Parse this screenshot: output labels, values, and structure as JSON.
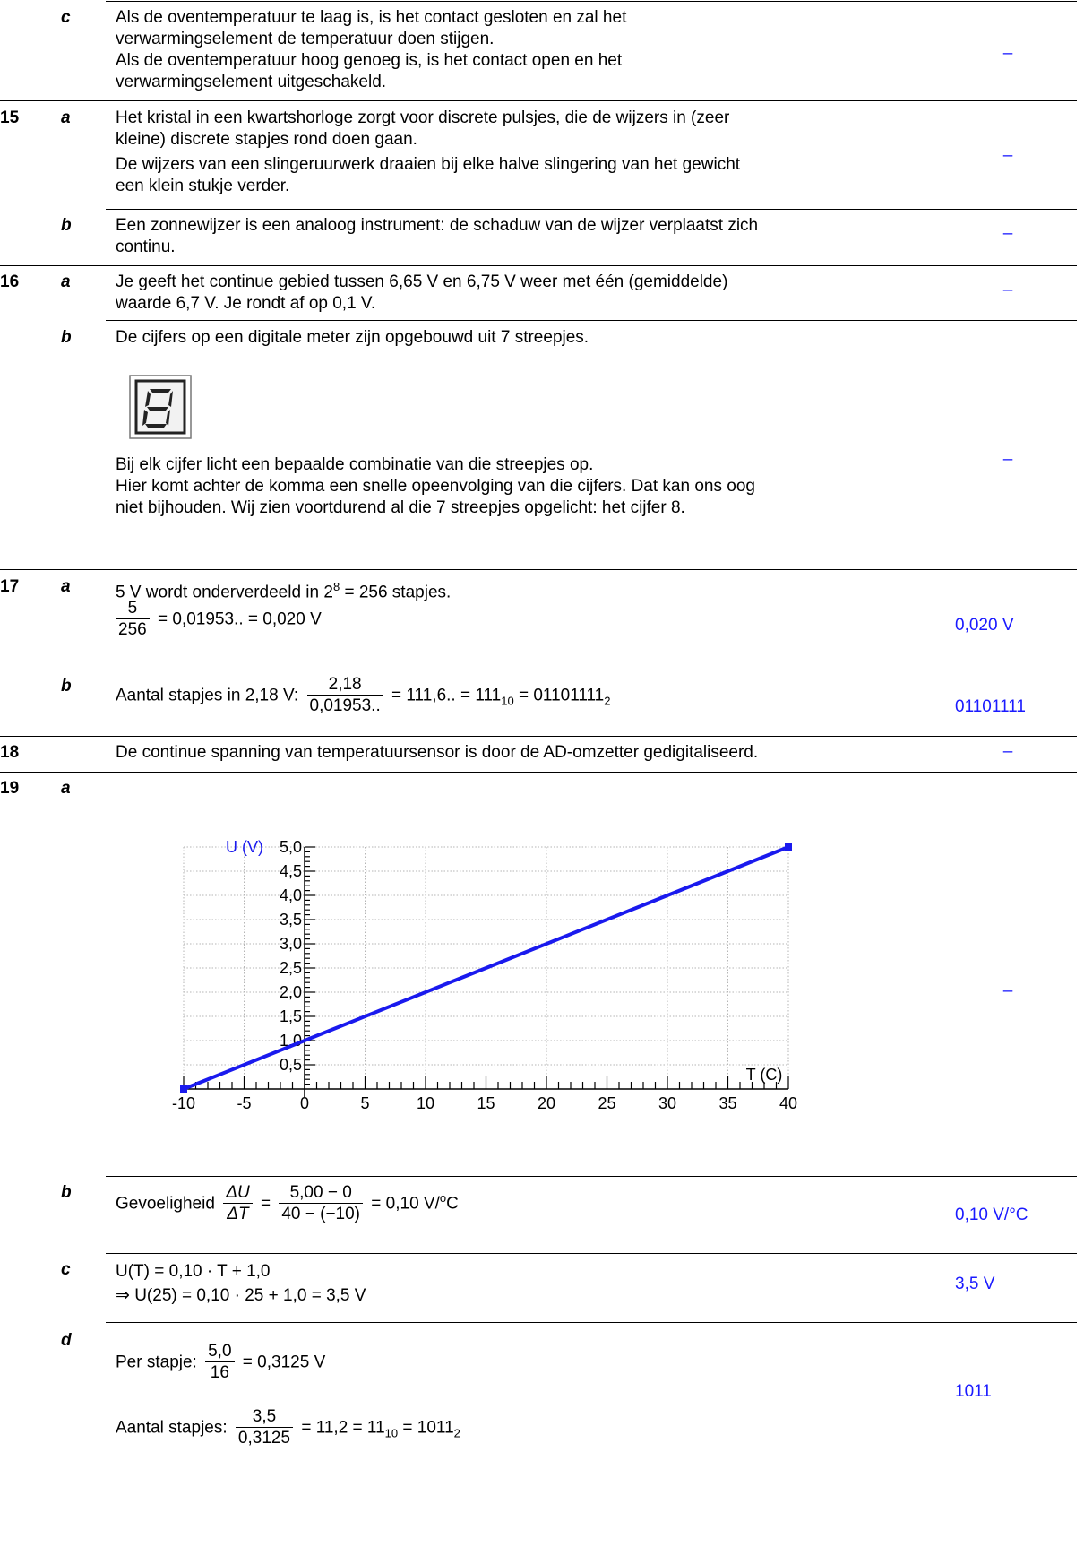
{
  "rows": {
    "r14c": {
      "letter": "c",
      "lines": [
        "Als de oventemperatuur te laag is, is het contact gesloten en zal het",
        "verwarmingselement de temperatuur doen stijgen.",
        "Als de oventemperatuur hoog genoeg is, is het contact open en het",
        "verwarmingselement uitgeschakeld."
      ],
      "answer": "–"
    },
    "r15a": {
      "number": "15",
      "letter": "a",
      "lines": [
        "Het kristal in een kwartshorloge zorgt voor discrete pulsjes, die de wijzers in (zeer",
        "kleine) discrete stapjes rond doen gaan.",
        "De wijzers van een slingeruurwerk draaien bij elke halve slingering van het gewicht",
        "een klein stukje verder."
      ],
      "answer": "–"
    },
    "r15b": {
      "letter": "b",
      "lines": [
        "Een zonnewijzer is een analoog instrument: de schaduw van de wijzer verplaatst zich",
        "continu."
      ],
      "answer": "–"
    },
    "r16a": {
      "number": "16",
      "letter": "a",
      "lines": [
        "Je geeft het continue gebied tussen 6,65 V en 6,75 V weer met één (gemiddelde)",
        "waarde 6,7 V. Je rondt af op 0,1 V."
      ],
      "answer": "–"
    },
    "r16b": {
      "letter": "b",
      "line1": "De cijfers op een digitale meter zijn opgebouwd uit 7 streepjes.",
      "lines": [
        "Bij elk cijfer licht een bepaalde combinatie van die streepjes op.",
        "Hier komt achter de komma een snelle opeenvolging van die cijfers. Dat kan ons oog",
        "niet bijhouden. Wij zien voortdurend al die 7 streepjes opgelicht: het cijfer 8."
      ],
      "answer": "–"
    },
    "r17a": {
      "number": "17",
      "letter": "a",
      "line1_pre": "5 V wordt onderverdeeld in 2",
      "line1_exp": "8",
      "line1_post": " = 256 stapjes.",
      "frac_num": "5",
      "frac_den": "256",
      "eq": " = 0,01953.. = 0,020 V",
      "answer": "0,020 V"
    },
    "r17b": {
      "letter": "b",
      "pre": "Aantal stapjes in 2,18 V:",
      "frac_num": "2,18",
      "frac_den": "0,01953..",
      "eq1": " = 111,6.. = 111",
      "sub1": "10",
      "eq2": " = 01101111",
      "sub2": "2",
      "answer": "01101111"
    },
    "r18": {
      "number": "18",
      "text": "De continue spanning van temperatuursensor is door de AD-omzetter gedigitaliseerd.",
      "answer": "–"
    },
    "r19a": {
      "number": "19",
      "letter": "a",
      "answer": "–"
    },
    "r19b": {
      "letter": "b",
      "pre": "Gevoeligheid",
      "frac1_num": "ΔU",
      "frac1_den": "ΔT",
      "frac2_num": "5,00 − 0",
      "frac2_den": "40 − (−10)",
      "eq": " = 0,10 V/",
      "deg": "o",
      "unit": "C",
      "answer": "0,10 V/°C"
    },
    "r19c": {
      "letter": "c",
      "line1": "U(T) = 0,10 · T + 1,0",
      "line2": "⇒ U(25) = 0,10 · 25 + 1,0 = 3,5 V",
      "answer": "3,5 V"
    },
    "r19d": {
      "letter": "d",
      "pre1": "Per stapje:",
      "f1_num": "5,0",
      "f1_den": "16",
      "eq1": " = 0,3125 V",
      "pre2": "Aantal stapjes:",
      "f2_num": "3,5",
      "f2_den": "0,3125",
      "eq2": " = 11,2 = 11",
      "sub1": "10",
      "eq3": " = 1011",
      "sub2": "2",
      "answer": "1011"
    }
  },
  "chart_data": {
    "type": "line",
    "xlabel": "T (C)",
    "ylabel": "U (V)",
    "xlim": [
      -10,
      40
    ],
    "ylim": [
      0,
      5
    ],
    "x_ticks": [
      "-10",
      "-5",
      "0",
      "5",
      "10",
      "15",
      "20",
      "25",
      "30",
      "35",
      "40"
    ],
    "y_ticks": [
      "0,5",
      "1,0",
      "1,5",
      "2,0",
      "2,5",
      "3,0",
      "3,5",
      "4,0",
      "4,5",
      "5,0"
    ],
    "grid": true,
    "line_color": "#1a1aee",
    "series": [
      {
        "x": [
          -10,
          40
        ],
        "y": [
          0,
          5
        ]
      }
    ]
  }
}
